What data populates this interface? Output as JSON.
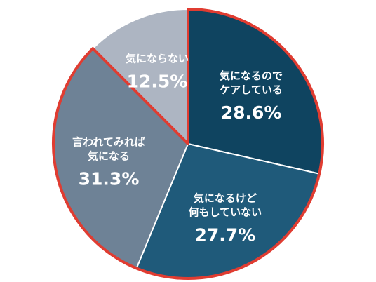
{
  "chart_data": {
    "type": "pie",
    "categories": [
      "気になるので\nケアしている",
      "気になるけど\n何もしていない",
      "言われてみれば\n気になる",
      "気にならない"
    ],
    "values": [
      28.6,
      27.7,
      31.3,
      12.5
    ],
    "value_labels": [
      "28.6%",
      "27.7%",
      "31.3%",
      "12.5%"
    ],
    "colors": [
      "#0f4460",
      "#1f5a7a",
      "#6e8296",
      "#adb5c2"
    ],
    "highlighted": [
      true,
      true,
      true,
      false
    ],
    "highlight_color": "#e03c31"
  }
}
